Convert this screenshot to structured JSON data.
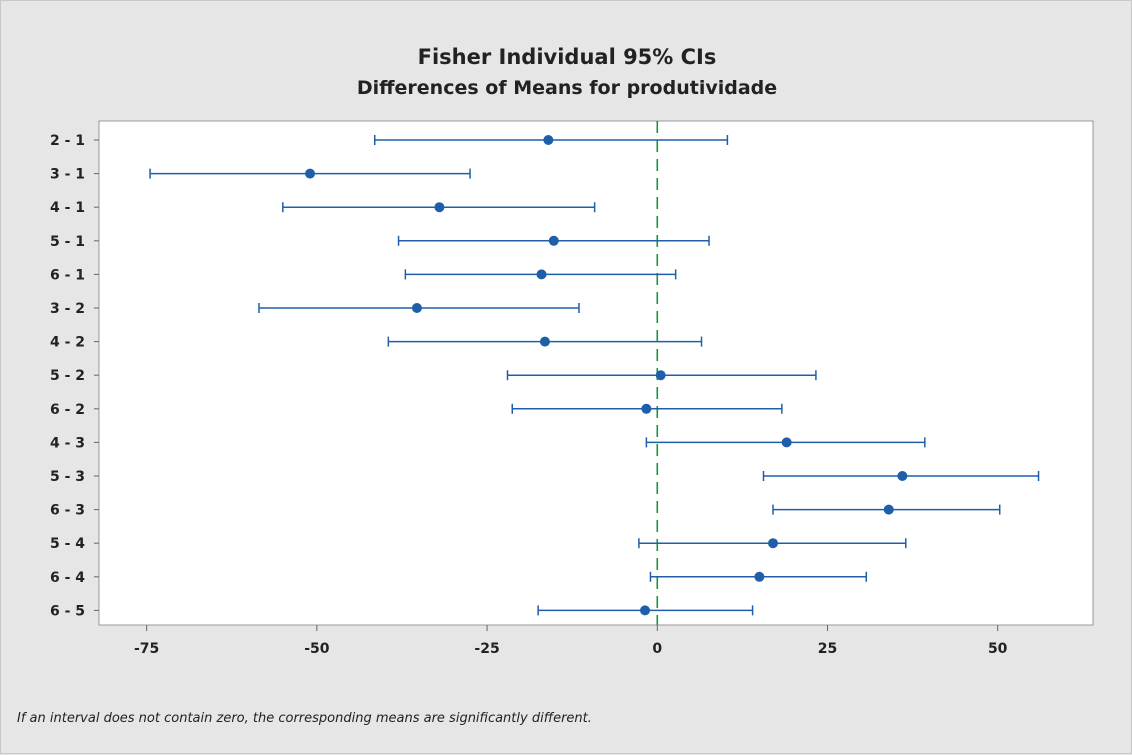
{
  "chart_data": {
    "type": "interval",
    "title": "Fisher Individual 95% CIs",
    "subtitle": "Differences of Means for produtividade",
    "xlabel": "",
    "ylabel": "",
    "xlim": [
      -82,
      64
    ],
    "x_ticks": [
      -75,
      -50,
      -25,
      0,
      25,
      50
    ],
    "x_tick_labels": [
      "-75",
      "-50",
      "-25",
      "0",
      "25",
      "50"
    ],
    "reference_line": 0,
    "grid": false,
    "legend": "none",
    "categories": [
      "2 - 1",
      "3 - 1",
      "4 - 1",
      "5 - 1",
      "6 - 1",
      "3 - 2",
      "4 - 2",
      "5 - 2",
      "6 - 2",
      "4 - 3",
      "5 - 3",
      "6 - 3",
      "5 - 4",
      "6 - 4",
      "6 - 5"
    ],
    "intervals": [
      {
        "label": "2 - 1",
        "lower": -41.5,
        "estimate": -16.0,
        "upper": 10.3
      },
      {
        "label": "3 - 1",
        "lower": -74.5,
        "estimate": -51.0,
        "upper": -27.5
      },
      {
        "label": "4 - 1",
        "lower": -55.0,
        "estimate": -32.0,
        "upper": -9.2
      },
      {
        "label": "5 - 1",
        "lower": -38.0,
        "estimate": -15.2,
        "upper": 7.6
      },
      {
        "label": "6 - 1",
        "lower": -37.0,
        "estimate": -17.0,
        "upper": 2.7
      },
      {
        "label": "3 - 2",
        "lower": -58.5,
        "estimate": -35.3,
        "upper": -11.5
      },
      {
        "label": "4 - 2",
        "lower": -39.5,
        "estimate": -16.5,
        "upper": 6.5
      },
      {
        "label": "5 - 2",
        "lower": -22.0,
        "estimate": 0.5,
        "upper": 23.3
      },
      {
        "label": "6 - 2",
        "lower": -21.3,
        "estimate": -1.6,
        "upper": 18.3
      },
      {
        "label": "4 - 3",
        "lower": -1.6,
        "estimate": 19.0,
        "upper": 39.3
      },
      {
        "label": "5 - 3",
        "lower": 15.6,
        "estimate": 36.0,
        "upper": 56.0
      },
      {
        "label": "6 - 3",
        "lower": 17.0,
        "estimate": 34.0,
        "upper": 50.3
      },
      {
        "label": "5 - 4",
        "lower": -2.7,
        "estimate": 17.0,
        "upper": 36.5
      },
      {
        "label": "6 - 4",
        "lower": -1.0,
        "estimate": 15.0,
        "upper": 30.7
      },
      {
        "label": "6 - 5",
        "lower": -17.5,
        "estimate": -1.8,
        "upper": 14.0
      }
    ],
    "colors": {
      "interval": "#1f5fa9",
      "reference": "#1a9641",
      "frame": "#9a9a9a",
      "plot_bg": "#ffffff",
      "page_bg": "#e6e6e6"
    }
  },
  "footnote": "If an interval does not contain zero, the corresponding means are significantly different."
}
